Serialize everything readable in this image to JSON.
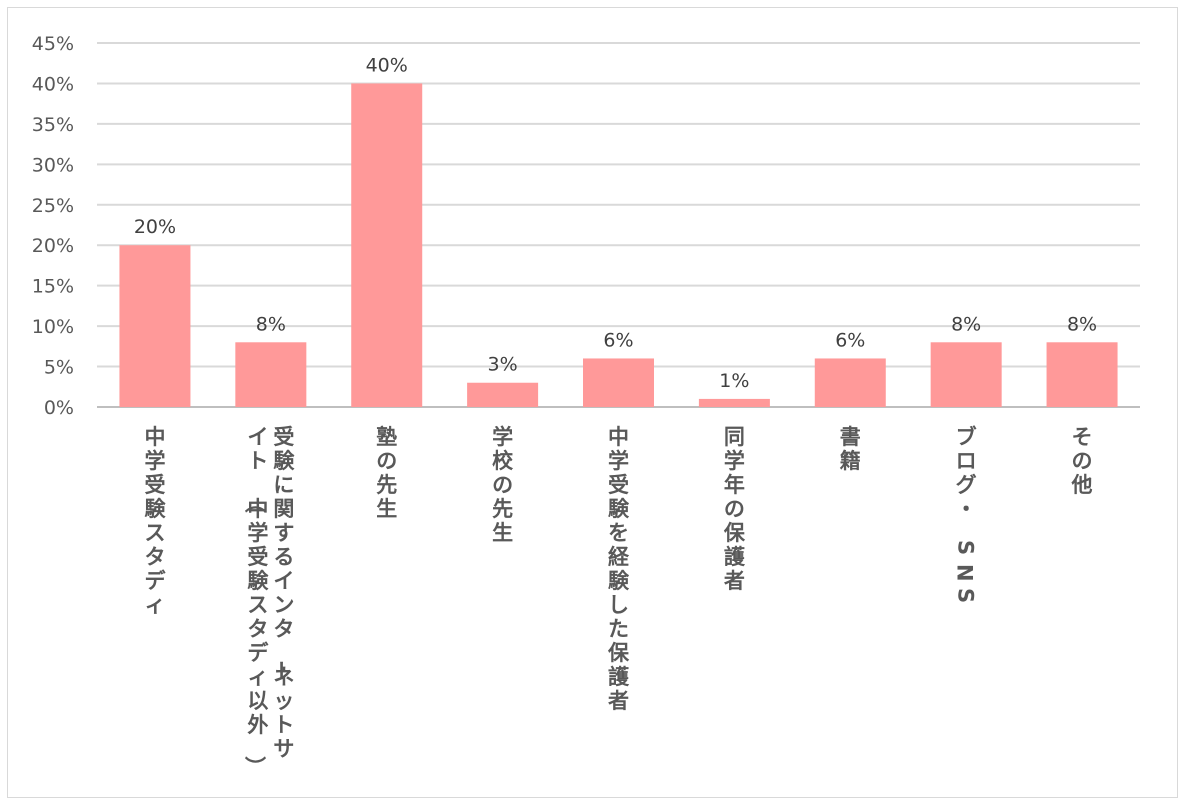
{
  "chart_data": {
    "type": "bar",
    "title": "",
    "xlabel": "",
    "ylabel": "",
    "ylim": [
      0,
      45
    ],
    "yticks": [
      "0%",
      "5%",
      "10%",
      "15%",
      "20%",
      "25%",
      "30%",
      "35%",
      "40%",
      "45%"
    ],
    "grid": true,
    "legend": "none",
    "bar_color": "#ff9999",
    "categories": [
      [
        "中学受験スタディ"
      ],
      [
        "受験に関するインターネットサ",
        "イト（中学受験スタディ以外）"
      ],
      [
        "塾の先生"
      ],
      [
        "学校の先生"
      ],
      [
        "中学受験を経験した保護者"
      ],
      [
        "同学年の保護者"
      ],
      [
        "書籍"
      ],
      [
        "ブログ・SNS"
      ],
      [
        "その他"
      ]
    ],
    "values": [
      20,
      8,
      40,
      3,
      6,
      1,
      6,
      8,
      8
    ],
    "data_labels": [
      "20%",
      "8%",
      "40%",
      "3%",
      "6%",
      "1%",
      "6%",
      "8%",
      "8%"
    ]
  }
}
